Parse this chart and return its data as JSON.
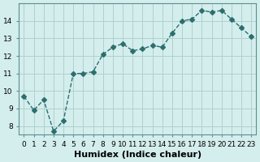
{
  "x": [
    0,
    1,
    2,
    3,
    4,
    5,
    6,
    7,
    8,
    9,
    10,
    11,
    12,
    13,
    14,
    15,
    16,
    17,
    18,
    19,
    20,
    21,
    22,
    23
  ],
  "y": [
    9.7,
    8.9,
    9.5,
    7.7,
    8.3,
    11.0,
    11.0,
    11.1,
    12.1,
    12.5,
    12.7,
    12.3,
    12.4,
    12.6,
    12.5,
    13.3,
    14.0,
    14.1,
    14.6,
    14.5,
    14.6,
    14.1,
    13.6,
    13.1
  ],
  "line_color": "#2d6e6e",
  "marker": "D",
  "marker_size": 3,
  "bg_color": "#d4eeed",
  "grid_color": "#b0d0cf",
  "xlabel": "Humidex (Indice chaleur)",
  "ylabel": "",
  "xlim": [
    -0.5,
    23.5
  ],
  "ylim": [
    7.5,
    15.0
  ],
  "yticks": [
    8,
    9,
    10,
    11,
    12,
    13,
    14
  ],
  "xticks": [
    0,
    1,
    2,
    3,
    4,
    5,
    6,
    7,
    8,
    9,
    10,
    11,
    12,
    13,
    14,
    15,
    16,
    17,
    18,
    19,
    20,
    21,
    22,
    23
  ],
  "tick_fontsize": 6.5,
  "xlabel_fontsize": 8,
  "spine_color": "#5a9090"
}
